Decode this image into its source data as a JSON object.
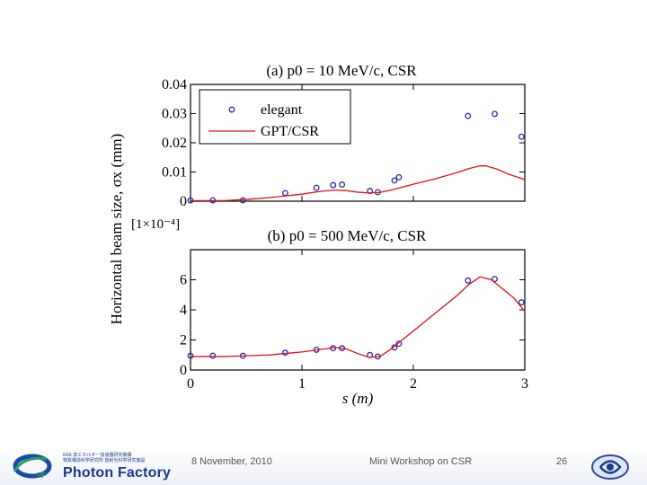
{
  "chart_data": [
    {
      "type": "line",
      "title": "(a) p0 = 10 MeV/c, CSR",
      "ylabel": "Horizontal beam size, σx (mm)",
      "xlim": [
        0,
        3
      ],
      "ylim": [
        0,
        0.04
      ],
      "yticks": [
        "0",
        "0.01",
        "0.02",
        "0.03",
        "0.04"
      ],
      "legend_placement": "top-left",
      "series": [
        {
          "name": "elegant",
          "style": "circles",
          "color": "#2a2ab0",
          "x": [
            0.0,
            0.2,
            0.47,
            0.85,
            1.13,
            1.28,
            1.36,
            1.61,
            1.68,
            1.83,
            1.87,
            2.49,
            2.73,
            2.97
          ],
          "y": [
            0.0003,
            0.0003,
            0.0003,
            0.0028,
            0.0046,
            0.0055,
            0.0057,
            0.0035,
            0.0031,
            0.0071,
            0.0082,
            0.0292,
            0.0299,
            0.0221
          ]
        },
        {
          "name": "GPT/CSR",
          "style": "line",
          "color": "#e01010",
          "x": [
            0.0,
            0.3,
            0.5,
            0.7,
            0.85,
            1.0,
            1.1,
            1.2,
            1.3,
            1.4,
            1.5,
            1.6,
            1.7,
            1.8,
            1.9,
            2.0,
            2.2,
            2.4,
            2.5,
            2.6,
            2.65,
            2.75,
            2.85,
            3.0
          ],
          "y": [
            0.0002,
            0.0002,
            0.0006,
            0.0012,
            0.0018,
            0.0024,
            0.003,
            0.0035,
            0.0038,
            0.0036,
            0.0031,
            0.0028,
            0.003,
            0.0038,
            0.0048,
            0.0058,
            0.0077,
            0.0099,
            0.0112,
            0.0121,
            0.0121,
            0.011,
            0.0093,
            0.0074
          ]
        }
      ]
    },
    {
      "type": "line",
      "title": "(b) p0 = 500 MeV/c, CSR",
      "xlabel": "s (m)",
      "yunit": "[1×10⁻⁴]",
      "xlim": [
        0,
        3
      ],
      "ylim": [
        0,
        8
      ],
      "xticks": [
        "0",
        "1",
        "2",
        "3"
      ],
      "yticks": [
        "0",
        "2",
        "4",
        "6"
      ],
      "series": [
        {
          "name": "elegant",
          "style": "circles",
          "color": "#2a2ab0",
          "x": [
            0.0,
            0.2,
            0.47,
            0.85,
            1.13,
            1.28,
            1.36,
            1.61,
            1.68,
            1.83,
            1.87,
            2.49,
            2.73,
            2.97
          ],
          "y": [
            0.95,
            0.95,
            0.95,
            1.15,
            1.35,
            1.45,
            1.45,
            1.0,
            0.9,
            1.5,
            1.75,
            5.95,
            6.05,
            4.5
          ]
        },
        {
          "name": "GPT/CSR",
          "style": "line",
          "color": "#e01010",
          "x": [
            0.0,
            0.3,
            0.5,
            0.7,
            0.85,
            1.0,
            1.15,
            1.3,
            1.4,
            1.5,
            1.6,
            1.7,
            1.8,
            1.9,
            2.0,
            2.2,
            2.4,
            2.5,
            2.6,
            2.7,
            2.8,
            2.9,
            3.0
          ],
          "y": [
            0.9,
            0.9,
            0.95,
            1.0,
            1.1,
            1.2,
            1.35,
            1.5,
            1.4,
            1.1,
            0.85,
            0.9,
            1.4,
            2.0,
            2.6,
            3.8,
            5.0,
            5.7,
            6.2,
            6.0,
            5.4,
            4.8,
            3.9
          ]
        }
      ]
    }
  ],
  "footer": {
    "org_line1": "KEK 高エネルギー加速器研究機構",
    "org_line2": "物質構造科学研究所 放射光科学研究施設",
    "brand": "Photon Factory",
    "date": "8 November, 2010",
    "event": "Mini Workshop on CSR",
    "page": "26",
    "logo_left": "photon-factory-logo-icon",
    "logo_right": "circular-logo-icon"
  }
}
